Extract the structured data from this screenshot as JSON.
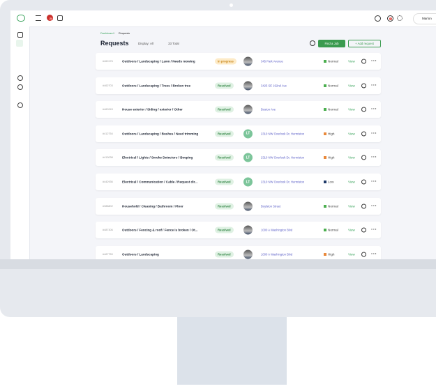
{
  "topbar": {
    "left_badge": "24",
    "right_badge": "3",
    "user": "Marlon"
  },
  "header": {
    "breadcrumb_parent": "Dashboard",
    "breadcrumb_separator": "/",
    "breadcrumb_current": "Requests",
    "title": "Requests",
    "filter": "Display: All",
    "total": "33 Total",
    "find_button": "Find a Job",
    "add_button": "+ Add request"
  },
  "rows": [
    {
      "id": "#460176",
      "title": "Outdoors / Landscaping / Lawn / Needs mowing",
      "status": "In progress",
      "avatar": null,
      "address": "345 Park Avenue",
      "priority": "Normal",
      "action": "View"
    },
    {
      "id": "#462703",
      "title": "Outdoors / Landscaping / Trees / Broken tree",
      "status": "Resolved",
      "avatar": null,
      "address": "3425 SE 192nd Ave",
      "priority": "Normal",
      "action": "View"
    },
    {
      "id": "#460243",
      "title": "House exterior / Siding / exterior / Other",
      "status": "Resolved",
      "avatar": null,
      "address": "Boston Ave",
      "priority": "Normal",
      "action": "View"
    },
    {
      "id": "#412754",
      "title": "Outdoors / Landscaping / Bushes / Need trimming",
      "status": "Resolved",
      "avatar": "LT",
      "address": "2310 NW Overlook Dr, Hermiston",
      "priority": "High",
      "action": "View"
    },
    {
      "id": "#413038",
      "title": "Electrical / Lights / Smoke Detectors / Beeping",
      "status": "Resolved",
      "avatar": "LT",
      "address": "2310 NW Overlook Dr, Hermiston",
      "priority": "High",
      "action": "View"
    },
    {
      "id": "#442936",
      "title": "Electrical / Communication / Cable / Request dir...",
      "status": "Resolved",
      "avatar": "LT",
      "address": "2310 NW Overlook Dr, Hermiston",
      "priority": "Low",
      "action": "View"
    },
    {
      "id": "#388802",
      "title": "Household / Cleaning / Bathroom / Floor",
      "status": "Resolved",
      "avatar": null,
      "address": "Boylston Street",
      "priority": "Normal",
      "action": "View"
    },
    {
      "id": "#487306",
      "title": "Outdoors / Fencing & roof / Fence is broken / Ot...",
      "status": "Resolved",
      "avatar": null,
      "address": "1000 A Washington Blvd",
      "priority": "Normal",
      "action": "View"
    },
    {
      "id": "#487759",
      "title": "Outdoors / Landscaping",
      "status": "Resolved",
      "avatar": null,
      "address": "1000 A Washington Blvd",
      "priority": "High",
      "action": "View"
    }
  ]
}
